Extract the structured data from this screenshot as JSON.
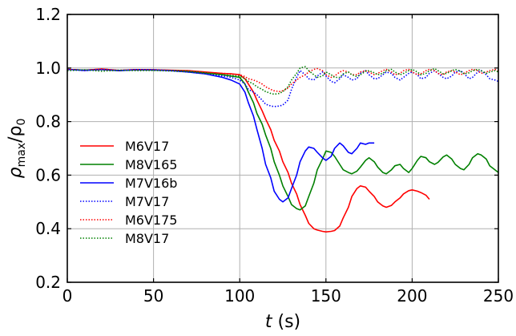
{
  "chart_data": {
    "type": "line",
    "title": "",
    "xlabel_var": "t",
    "xlabel_unit": " (s)",
    "ylabel_main": "ρ",
    "ylabel_sub": "max",
    "ylabel_mid": "/ρ",
    "ylabel_sub2": "0",
    "xlim": [
      0,
      250
    ],
    "ylim": [
      0.2,
      1.2
    ],
    "xticks": [
      0,
      50,
      100,
      150,
      200,
      250
    ],
    "xtick_labels": [
      "0",
      "50",
      "100",
      "150",
      "200",
      "250"
    ],
    "yticks": [
      0.2,
      0.4,
      0.6,
      0.8,
      1.0,
      1.2
    ],
    "ytick_labels": [
      "0.2",
      "0.4",
      "0.6",
      "0.8",
      "1.0",
      "1.2"
    ],
    "grid": true,
    "legend_position": "lower-left",
    "series": [
      {
        "name": "M6V17",
        "color": "#ff0000",
        "dash": "solid",
        "x": [
          0,
          10,
          20,
          30,
          40,
          50,
          60,
          70,
          80,
          90,
          95,
          100,
          103,
          105,
          108,
          110,
          113,
          115,
          118,
          120,
          123,
          125,
          128,
          130,
          133,
          135,
          138,
          140,
          143,
          145,
          148,
          150,
          153,
          155,
          158,
          160,
          163,
          165,
          168,
          170,
          173,
          175,
          178,
          180,
          183,
          185,
          188,
          190,
          193,
          195,
          198,
          200,
          203,
          205,
          208,
          210
        ],
        "y": [
          0.995,
          0.992,
          0.996,
          0.991,
          0.994,
          0.993,
          0.992,
          0.99,
          0.985,
          0.98,
          0.978,
          0.975,
          0.96,
          0.94,
          0.91,
          0.88,
          0.84,
          0.81,
          0.77,
          0.73,
          0.69,
          0.65,
          0.61,
          0.57,
          0.53,
          0.49,
          0.45,
          0.42,
          0.4,
          0.395,
          0.39,
          0.388,
          0.39,
          0.393,
          0.41,
          0.44,
          0.48,
          0.52,
          0.55,
          0.56,
          0.555,
          0.54,
          0.52,
          0.5,
          0.485,
          0.48,
          0.487,
          0.5,
          0.515,
          0.53,
          0.542,
          0.545,
          0.54,
          0.535,
          0.525,
          0.51
        ]
      },
      {
        "name": "M8V165",
        "color": "#008000",
        "dash": "solid",
        "x": [
          0,
          10,
          20,
          30,
          40,
          50,
          60,
          70,
          80,
          90,
          95,
          100,
          103,
          105,
          108,
          110,
          113,
          115,
          118,
          120,
          123,
          125,
          128,
          130,
          133,
          135,
          138,
          140,
          143,
          145,
          148,
          150,
          153,
          155,
          158,
          160,
          163,
          165,
          168,
          170,
          173,
          175,
          178,
          180,
          183,
          185,
          188,
          190,
          193,
          195,
          198,
          200,
          203,
          205,
          208,
          210,
          213,
          215,
          218,
          220,
          223,
          225,
          228,
          230,
          233,
          235,
          238,
          240,
          243,
          245,
          248,
          250
        ],
        "y": [
          0.995,
          0.992,
          0.994,
          0.99,
          0.993,
          0.992,
          0.991,
          0.988,
          0.982,
          0.975,
          0.97,
          0.965,
          0.94,
          0.91,
          0.87,
          0.83,
          0.79,
          0.75,
          0.7,
          0.65,
          0.6,
          0.56,
          0.52,
          0.49,
          0.475,
          0.47,
          0.485,
          0.52,
          0.57,
          0.62,
          0.66,
          0.69,
          0.685,
          0.67,
          0.64,
          0.62,
          0.61,
          0.605,
          0.615,
          0.63,
          0.655,
          0.665,
          0.65,
          0.63,
          0.61,
          0.605,
          0.62,
          0.635,
          0.64,
          0.625,
          0.61,
          0.625,
          0.655,
          0.67,
          0.665,
          0.65,
          0.64,
          0.648,
          0.668,
          0.675,
          0.66,
          0.64,
          0.625,
          0.62,
          0.64,
          0.665,
          0.68,
          0.675,
          0.66,
          0.635,
          0.62,
          0.61
        ]
      },
      {
        "name": "M7V16b",
        "color": "#0000ff",
        "dash": "solid",
        "x": [
          0,
          10,
          20,
          30,
          40,
          50,
          60,
          70,
          80,
          90,
          95,
          100,
          103,
          105,
          108,
          110,
          113,
          115,
          118,
          120,
          123,
          125,
          128,
          130,
          133,
          135,
          138,
          140,
          143,
          145,
          148,
          150,
          153,
          155,
          158,
          160,
          163,
          165,
          168,
          170,
          173,
          175,
          178
        ],
        "y": [
          0.995,
          0.991,
          0.995,
          0.99,
          0.994,
          0.993,
          0.99,
          0.985,
          0.978,
          0.965,
          0.955,
          0.94,
          0.91,
          0.87,
          0.82,
          0.77,
          0.7,
          0.64,
          0.59,
          0.54,
          0.51,
          0.5,
          0.515,
          0.55,
          0.6,
          0.65,
          0.69,
          0.705,
          0.7,
          0.685,
          0.665,
          0.655,
          0.67,
          0.7,
          0.72,
          0.71,
          0.685,
          0.68,
          0.7,
          0.72,
          0.715,
          0.72,
          0.72
        ]
      },
      {
        "name": "M7V17",
        "color": "#0000ff",
        "dash": "dotted",
        "x": [
          0,
          10,
          20,
          30,
          40,
          50,
          60,
          70,
          80,
          90,
          95,
          100,
          103,
          105,
          108,
          110,
          113,
          115,
          118,
          120,
          123,
          125,
          128,
          130,
          133,
          135,
          138,
          140,
          143,
          145,
          148,
          150,
          153,
          155,
          158,
          160,
          163,
          165,
          168,
          170,
          173,
          175,
          178,
          180,
          183,
          185,
          188,
          190,
          193,
          195,
          198,
          200,
          203,
          205,
          208,
          210,
          213,
          215,
          218,
          220,
          223,
          225,
          228,
          230,
          233,
          235,
          238,
          240,
          243,
          245,
          248,
          250
        ],
        "y": [
          0.995,
          0.99,
          0.994,
          0.99,
          0.993,
          0.992,
          0.99,
          0.985,
          0.978,
          0.97,
          0.965,
          0.955,
          0.94,
          0.92,
          0.91,
          0.9,
          0.88,
          0.865,
          0.858,
          0.856,
          0.858,
          0.862,
          0.88,
          0.92,
          0.965,
          0.99,
          0.975,
          0.96,
          0.955,
          0.97,
          0.985,
          0.97,
          0.95,
          0.945,
          0.96,
          0.975,
          0.965,
          0.955,
          0.96,
          0.98,
          0.99,
          0.975,
          0.96,
          0.96,
          0.975,
          0.985,
          0.98,
          0.965,
          0.955,
          0.965,
          0.98,
          0.985,
          0.975,
          0.96,
          0.965,
          0.98,
          0.99,
          0.98,
          0.965,
          0.96,
          0.97,
          0.985,
          0.99,
          0.98,
          0.96,
          0.965,
          0.985,
          0.99,
          0.975,
          0.96,
          0.955,
          0.95
        ]
      },
      {
        "name": "M6V175",
        "color": "#ff0000",
        "dash": "dotted",
        "x": [
          0,
          10,
          20,
          30,
          40,
          50,
          60,
          70,
          80,
          90,
          95,
          100,
          103,
          105,
          108,
          110,
          113,
          115,
          118,
          120,
          123,
          125,
          128,
          130,
          133,
          135,
          138,
          140,
          143,
          145,
          148,
          150,
          153,
          155,
          158,
          160,
          163,
          165,
          168,
          170,
          173,
          175,
          178,
          180,
          183,
          185,
          188,
          190,
          193,
          195,
          198,
          200,
          203,
          205,
          208,
          210,
          213,
          215,
          218,
          220,
          223,
          225,
          228,
          230,
          233,
          235,
          238,
          240,
          243,
          245,
          248,
          250
        ],
        "y": [
          0.995,
          0.992,
          0.996,
          0.991,
          0.994,
          0.993,
          0.991,
          0.988,
          0.983,
          0.98,
          0.978,
          0.975,
          0.968,
          0.96,
          0.955,
          0.95,
          0.94,
          0.93,
          0.92,
          0.915,
          0.912,
          0.915,
          0.925,
          0.94,
          0.955,
          0.965,
          0.975,
          0.985,
          0.995,
          0.998,
          0.99,
          0.975,
          0.965,
          0.97,
          0.985,
          0.99,
          0.985,
          0.975,
          0.975,
          0.985,
          0.99,
          0.985,
          0.975,
          0.98,
          0.99,
          0.995,
          0.985,
          0.975,
          0.98,
          0.99,
          0.995,
          0.985,
          0.975,
          0.978,
          0.99,
          0.995,
          0.99,
          0.98,
          0.975,
          0.985,
          0.99,
          0.985,
          0.975,
          0.98,
          0.99,
          0.995,
          0.99,
          0.98,
          0.985,
          0.99,
          0.995,
          0.99
        ]
      },
      {
        "name": "M8V17",
        "color": "#008000",
        "dash": "dotted",
        "x": [
          0,
          10,
          20,
          30,
          40,
          50,
          60,
          70,
          80,
          90,
          95,
          100,
          103,
          105,
          108,
          110,
          113,
          115,
          118,
          120,
          123,
          125,
          128,
          130,
          133,
          135,
          138,
          140,
          143,
          145,
          148,
          150,
          153,
          155,
          158,
          160,
          163,
          165,
          168,
          170,
          173,
          175,
          178,
          180,
          183,
          185,
          188,
          190,
          193,
          195,
          198,
          200,
          203,
          205,
          208,
          210,
          213,
          215,
          218,
          220,
          223,
          225,
          228,
          230,
          233,
          235,
          238,
          240,
          243,
          245,
          248,
          250
        ],
        "y": [
          0.99,
          0.993,
          0.988,
          0.992,
          0.99,
          0.991,
          0.989,
          0.986,
          0.98,
          0.975,
          0.972,
          0.97,
          0.96,
          0.95,
          0.94,
          0.93,
          0.92,
          0.912,
          0.905,
          0.902,
          0.905,
          0.912,
          0.93,
          0.955,
          0.98,
          1.0,
          1.005,
          0.99,
          0.975,
          0.965,
          0.97,
          0.985,
          0.975,
          0.965,
          0.965,
          0.978,
          0.985,
          0.975,
          0.968,
          0.975,
          0.988,
          0.99,
          0.982,
          0.975,
          0.98,
          0.99,
          0.995,
          0.985,
          0.975,
          0.98,
          0.99,
          0.995,
          0.985,
          0.975,
          0.98,
          0.99,
          0.998,
          0.99,
          0.978,
          0.98,
          0.99,
          0.995,
          0.988,
          0.978,
          0.982,
          0.99,
          0.995,
          0.99,
          0.98,
          0.985,
          0.99,
          0.985
        ]
      }
    ]
  }
}
